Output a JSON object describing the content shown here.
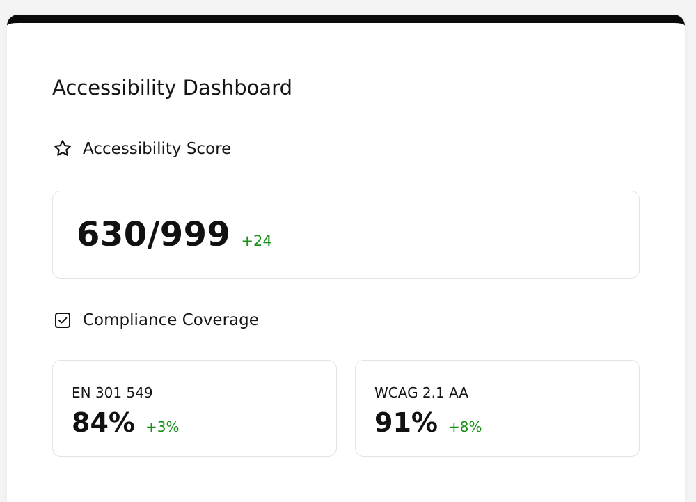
{
  "dashboard": {
    "title": "Accessibility Dashboard"
  },
  "score_section": {
    "icon": "star-icon",
    "heading": "Accessibility Score",
    "value": "630/999",
    "delta": "+24"
  },
  "coverage_section": {
    "icon": "checkbox-icon",
    "heading": "Compliance Coverage",
    "items": [
      {
        "label": "EN 301 549",
        "value": "84%",
        "delta": "+3%"
      },
      {
        "label": "WCAG 2.1 AA",
        "value": "91%",
        "delta": "+8%"
      }
    ]
  },
  "colors": {
    "top_border": "#0b0b0b",
    "positive_delta": "#1a8f1a",
    "panel_border": "#e3e3e3"
  }
}
